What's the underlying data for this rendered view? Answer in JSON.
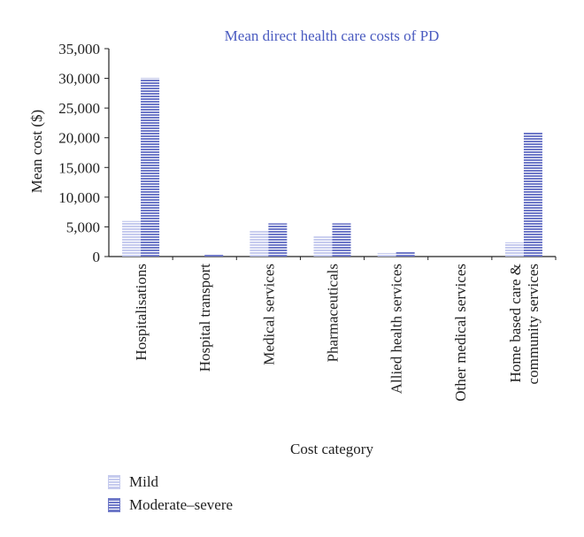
{
  "chart_data": {
    "type": "bar",
    "title": "Mean direct health care costs of PD",
    "xlabel": "Cost category",
    "ylabel": "Mean cost ($)",
    "ylim": [
      0,
      35000
    ],
    "yticks": [
      0,
      5000,
      10000,
      15000,
      20000,
      25000,
      30000,
      35000
    ],
    "ytick_labels": [
      "0",
      "5,000",
      "10,000",
      "15,000",
      "20,000",
      "25,000",
      "30,000",
      "35,000"
    ],
    "categories": [
      [
        "Hospitalisations"
      ],
      [
        "Hospital transport"
      ],
      [
        "Medical services"
      ],
      [
        "Pharmaceuticals"
      ],
      [
        "Allied health services"
      ],
      [
        "Other medical services"
      ],
      [
        "Home based care &",
        "community services"
      ]
    ],
    "series": [
      {
        "name": "Mild",
        "values": [
          6000,
          0,
          4300,
          3400,
          600,
          0,
          2400
        ],
        "color": "#c6cbee",
        "stripe": "#ffffff"
      },
      {
        "name": "Moderate–severe",
        "values": [
          30000,
          400,
          5600,
          5600,
          800,
          0,
          20900
        ],
        "color": "#6f79c8",
        "stripe": "#ffffff"
      }
    ],
    "grid": false,
    "legend_position": "bottom-left"
  },
  "colors": {
    "title": "#4a5bc0",
    "axis": "#222222"
  }
}
